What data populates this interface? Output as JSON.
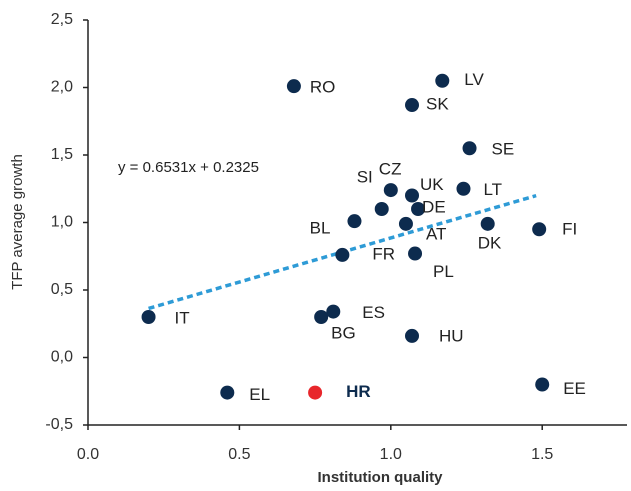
{
  "chart_data": {
    "type": "scatter",
    "x_label": "Institution quality",
    "y_label": "TFP average growth",
    "labels": [
      "RO",
      "LV",
      "SK",
      "SE",
      "CZ",
      "UK",
      "LT",
      "SI",
      "DE",
      "BL",
      "AT",
      "DK",
      "FI",
      "FR",
      "PL",
      "IT",
      "ES",
      "BG",
      "HU",
      "EL",
      "HR",
      "EE"
    ],
    "x": [
      0.68,
      1.17,
      1.07,
      1.26,
      1.0,
      1.07,
      1.24,
      0.97,
      1.09,
      0.88,
      1.05,
      1.32,
      1.49,
      0.84,
      1.08,
      0.2,
      0.81,
      0.77,
      1.07,
      0.46,
      0.75,
      1.5
    ],
    "values": [
      2.01,
      2.05,
      1.87,
      1.55,
      1.24,
      1.2,
      1.25,
      1.1,
      1.1,
      1.01,
      0.99,
      0.99,
      0.95,
      0.76,
      0.77,
      0.3,
      0.34,
      0.3,
      0.16,
      -0.26,
      -0.26,
      -0.2
    ],
    "color": "#0d2b4e",
    "colors": [
      "#0d2b4e",
      "#0d2b4e",
      "#0d2b4e",
      "#0d2b4e",
      "#0d2b4e",
      "#0d2b4e",
      "#0d2b4e",
      "#0d2b4e",
      "#0d2b4e",
      "#0d2b4e",
      "#0d2b4e",
      "#0d2b4e",
      "#0d2b4e",
      "#0d2b4e",
      "#0d2b4e",
      "#0d2b4e",
      "#0d2b4e",
      "#0d2b4e",
      "#0d2b4e",
      "#0d2b4e",
      "#e8262b",
      "#0d2b4e"
    ],
    "trendline": {
      "label": "y = 0.6531x + 0.2325",
      "slope": 0.6531,
      "intercept": 0.2325,
      "x": [
        0.2,
        1.48
      ],
      "color": "#2e9bd6"
    },
    "xlim": [
      0,
      1.78
    ],
    "ylim": [
      -0.5,
      2.5
    ],
    "xticks": [
      {
        "value": 0,
        "label": "0.0"
      },
      0.5,
      {
        "value": 1,
        "label": "1.0"
      },
      1.5
    ],
    "yticks": [
      {
        "value": -0.5,
        "label": "-0,5"
      },
      {
        "value": 0,
        "label": "0,0"
      },
      {
        "value": 0.5,
        "label": "0,5"
      },
      {
        "value": 1,
        "label": "1,0"
      },
      {
        "value": 1.5,
        "label": "1,5"
      },
      {
        "value": 2,
        "label": "2,0"
      },
      {
        "value": 2.5,
        "label": "2,5"
      }
    ]
  }
}
